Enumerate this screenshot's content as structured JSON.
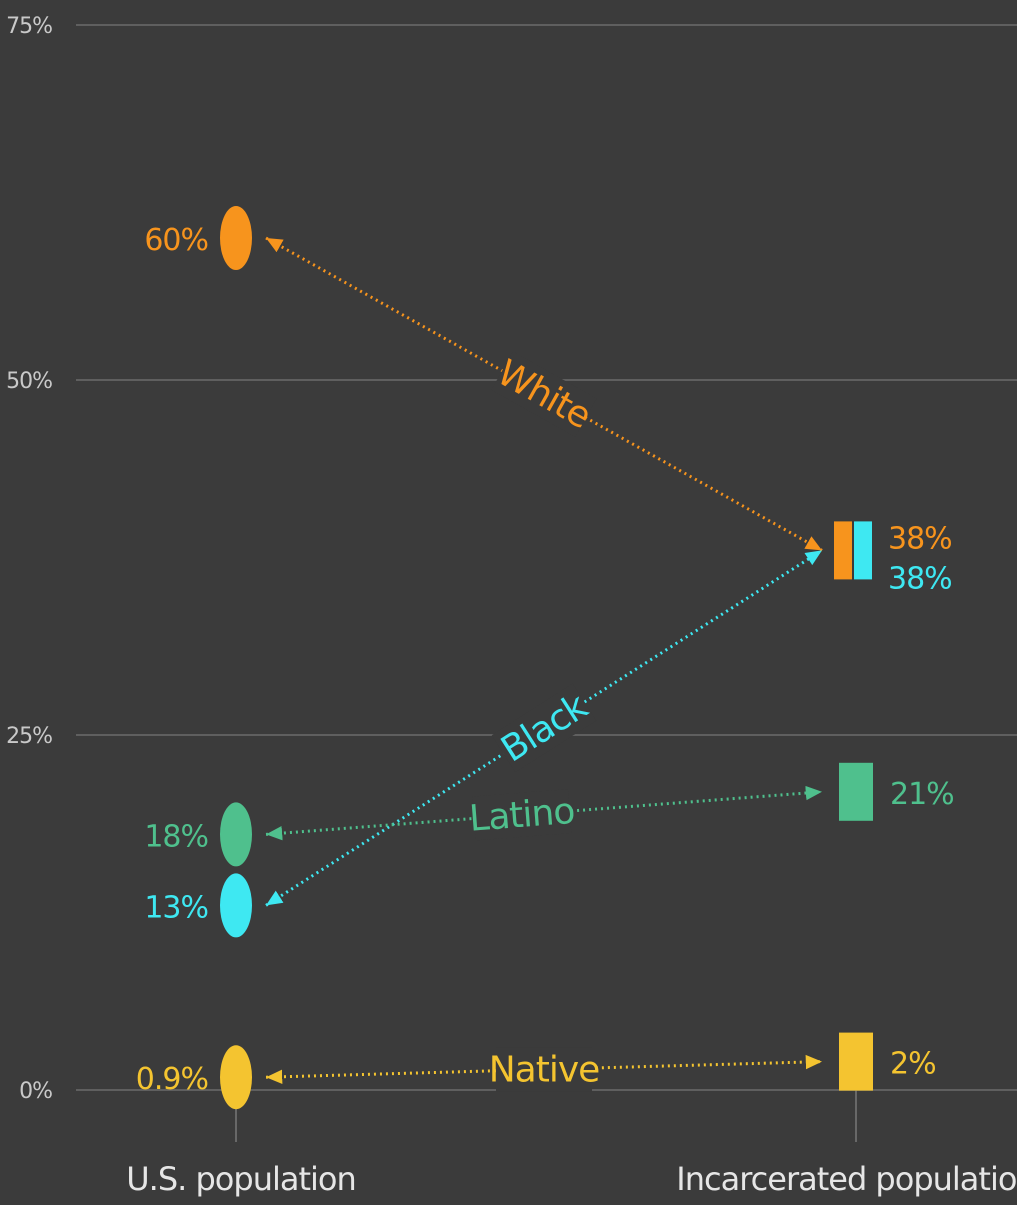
{
  "chart_data": {
    "type": "slope",
    "ylim": [
      0,
      75
    ],
    "yticks": [
      "0%",
      "25%",
      "50%",
      "75%"
    ],
    "ytick_values": [
      0,
      25,
      50,
      75
    ],
    "grid": true,
    "x_categories": [
      "U.S. population",
      "Incarcerated population"
    ],
    "series": [
      {
        "name": "White",
        "color": "#f7941d",
        "values": [
          60,
          38
        ],
        "labels": [
          "60%",
          "38%"
        ]
      },
      {
        "name": "Black",
        "color": "#3ee8f2",
        "values": [
          13,
          38
        ],
        "labels": [
          "13%",
          "38%"
        ]
      },
      {
        "name": "Latino",
        "color": "#4fc08d",
        "values": [
          18,
          21
        ],
        "labels": [
          "18%",
          "21%"
        ]
      },
      {
        "name": "Native",
        "color": "#f4c430",
        "values": [
          0.9,
          2
        ],
        "labels": [
          "0.9%",
          "2%"
        ]
      }
    ]
  }
}
